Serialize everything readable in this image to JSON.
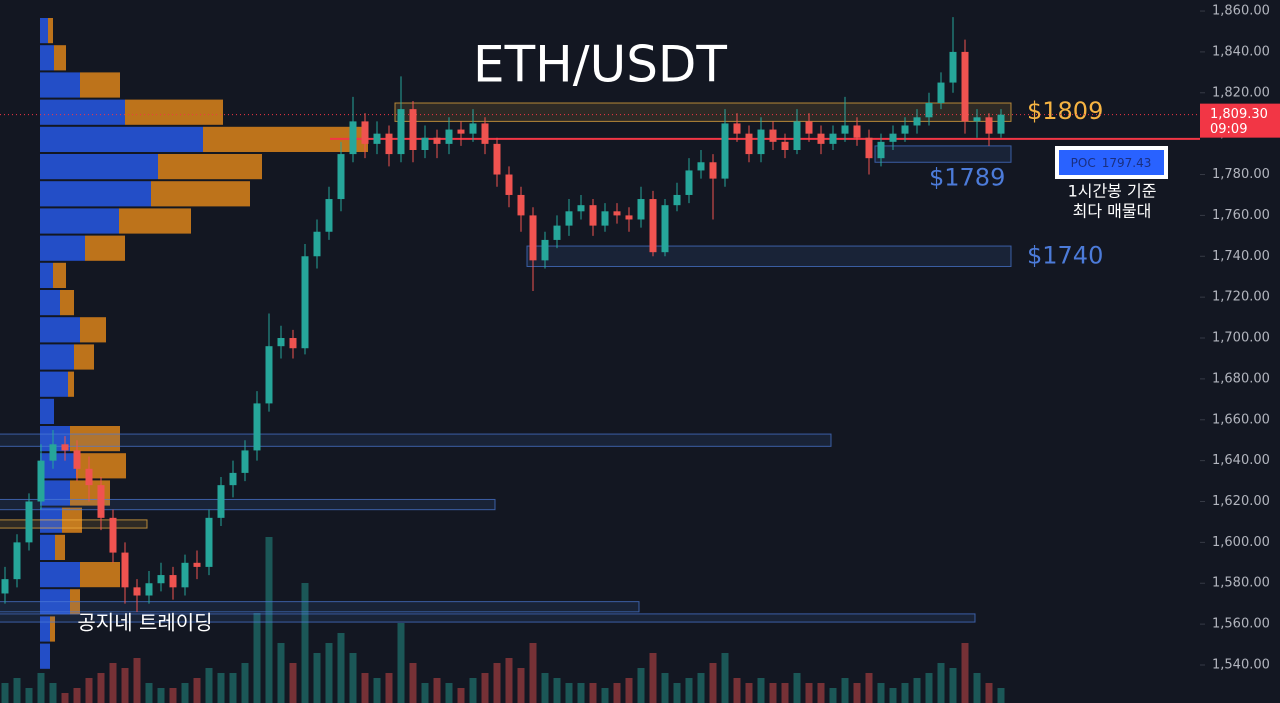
{
  "chart_data": {
    "type": "candlestick",
    "title": "ETH/USDT",
    "ylim": [
      1521.4,
      1865.4
    ],
    "yticks": [
      {
        "value": 1540,
        "label": "1,540.00"
      },
      {
        "value": 1560,
        "label": "1,560.00"
      },
      {
        "value": 1580,
        "label": "1,580.00"
      },
      {
        "value": 1600,
        "label": "1,600.00"
      },
      {
        "value": 1620,
        "label": "1,620.00"
      },
      {
        "value": 1640,
        "label": "1,640.00"
      },
      {
        "value": 1660,
        "label": "1,660.00"
      },
      {
        "value": 1680,
        "label": "1,680.00"
      },
      {
        "value": 1700,
        "label": "1,700.00"
      },
      {
        "value": 1720,
        "label": "1,720.00"
      },
      {
        "value": 1740,
        "label": "1,740.00"
      },
      {
        "value": 1760,
        "label": "1,760.00"
      },
      {
        "value": 1780,
        "label": "1,780.00"
      },
      {
        "value": 1800,
        "label": "1,800.00"
      },
      {
        "value": 1820,
        "label": "1,820.00"
      },
      {
        "value": 1840,
        "label": "1,840.00"
      },
      {
        "value": 1860,
        "label": "1,860.00"
      }
    ],
    "up_color": "#26a69a",
    "down_color": "#ef5350",
    "ohlc": [
      [
        1575,
        1588,
        1570,
        1582
      ],
      [
        1582,
        1604,
        1578,
        1600
      ],
      [
        1600,
        1624,
        1596,
        1620
      ],
      [
        1620,
        1648,
        1616,
        1640
      ],
      [
        1640,
        1655,
        1636,
        1648
      ],
      [
        1648,
        1652,
        1640,
        1645
      ],
      [
        1645,
        1650,
        1630,
        1636
      ],
      [
        1636,
        1642,
        1620,
        1628
      ],
      [
        1628,
        1632,
        1606,
        1612
      ],
      [
        1612,
        1616,
        1590,
        1595
      ],
      [
        1595,
        1600,
        1570,
        1578
      ],
      [
        1578,
        1582,
        1566,
        1574
      ],
      [
        1574,
        1586,
        1570,
        1580
      ],
      [
        1580,
        1590,
        1576,
        1584
      ],
      [
        1584,
        1588,
        1572,
        1578
      ],
      [
        1578,
        1594,
        1574,
        1590
      ],
      [
        1590,
        1596,
        1582,
        1588
      ],
      [
        1588,
        1616,
        1584,
        1612
      ],
      [
        1612,
        1632,
        1608,
        1628
      ],
      [
        1628,
        1640,
        1622,
        1634
      ],
      [
        1634,
        1650,
        1630,
        1645
      ],
      [
        1645,
        1674,
        1640,
        1668
      ],
      [
        1668,
        1712,
        1664,
        1696
      ],
      [
        1696,
        1706,
        1690,
        1700
      ],
      [
        1700,
        1704,
        1690,
        1695
      ],
      [
        1695,
        1746,
        1692,
        1740
      ],
      [
        1740,
        1758,
        1734,
        1752
      ],
      [
        1752,
        1774,
        1748,
        1768
      ],
      [
        1768,
        1796,
        1762,
        1790
      ],
      [
        1790,
        1818,
        1786,
        1806
      ],
      [
        1806,
        1810,
        1788,
        1795
      ],
      [
        1795,
        1806,
        1790,
        1800
      ],
      [
        1800,
        1804,
        1784,
        1790
      ],
      [
        1790,
        1828,
        1786,
        1812
      ],
      [
        1812,
        1816,
        1786,
        1792
      ],
      [
        1792,
        1804,
        1788,
        1798
      ],
      [
        1798,
        1802,
        1788,
        1795
      ],
      [
        1795,
        1808,
        1790,
        1802
      ],
      [
        1802,
        1806,
        1794,
        1800
      ],
      [
        1800,
        1812,
        1796,
        1805
      ],
      [
        1805,
        1808,
        1790,
        1795
      ],
      [
        1795,
        1798,
        1774,
        1780
      ],
      [
        1780,
        1784,
        1764,
        1770
      ],
      [
        1770,
        1774,
        1752,
        1760
      ],
      [
        1760,
        1764,
        1723,
        1738
      ],
      [
        1738,
        1752,
        1734,
        1748
      ],
      [
        1748,
        1760,
        1744,
        1755
      ],
      [
        1755,
        1768,
        1750,
        1762
      ],
      [
        1762,
        1770,
        1758,
        1765
      ],
      [
        1765,
        1768,
        1750,
        1755
      ],
      [
        1755,
        1766,
        1752,
        1762
      ],
      [
        1762,
        1766,
        1756,
        1760
      ],
      [
        1760,
        1764,
        1752,
        1758
      ],
      [
        1758,
        1774,
        1754,
        1768
      ],
      [
        1768,
        1772,
        1740,
        1742
      ],
      [
        1742,
        1768,
        1740,
        1765
      ],
      [
        1765,
        1776,
        1762,
        1770
      ],
      [
        1770,
        1788,
        1766,
        1782
      ],
      [
        1782,
        1792,
        1778,
        1786
      ],
      [
        1786,
        1790,
        1758,
        1778
      ],
      [
        1778,
        1812,
        1774,
        1805
      ],
      [
        1805,
        1810,
        1796,
        1800
      ],
      [
        1800,
        1804,
        1786,
        1790
      ],
      [
        1790,
        1808,
        1786,
        1802
      ],
      [
        1802,
        1806,
        1792,
        1796
      ],
      [
        1796,
        1800,
        1788,
        1792
      ],
      [
        1792,
        1812,
        1790,
        1806
      ],
      [
        1806,
        1810,
        1796,
        1800
      ],
      [
        1800,
        1804,
        1790,
        1795
      ],
      [
        1795,
        1804,
        1792,
        1800
      ],
      [
        1800,
        1818,
        1796,
        1804
      ],
      [
        1804,
        1808,
        1794,
        1798
      ],
      [
        1798,
        1802,
        1780,
        1788
      ],
      [
        1788,
        1800,
        1784,
        1796
      ],
      [
        1796,
        1804,
        1792,
        1800
      ],
      [
        1800,
        1808,
        1796,
        1804
      ],
      [
        1804,
        1812,
        1800,
        1808
      ],
      [
        1808,
        1820,
        1804,
        1815
      ],
      [
        1815,
        1830,
        1812,
        1825
      ],
      [
        1825,
        1857,
        1820,
        1840
      ],
      [
        1840,
        1846,
        1800,
        1806
      ],
      [
        1806,
        1812,
        1798,
        1808
      ],
      [
        1808,
        1810,
        1794,
        1800
      ],
      [
        1800,
        1812,
        1798,
        1809.3
      ]
    ],
    "volume": [
      20,
      25,
      15,
      30,
      20,
      10,
      15,
      25,
      30,
      40,
      35,
      45,
      20,
      15,
      15,
      20,
      25,
      35,
      30,
      30,
      40,
      90,
      166,
      60,
      40,
      120,
      50,
      60,
      70,
      50,
      30,
      25,
      30,
      80,
      40,
      20,
      25,
      20,
      15,
      25,
      30,
      40,
      45,
      35,
      60,
      30,
      25,
      20,
      20,
      20,
      15,
      20,
      25,
      35,
      50,
      30,
      20,
      25,
      30,
      40,
      50,
      25,
      20,
      25,
      20,
      20,
      30,
      20,
      20,
      15,
      25,
      20,
      30,
      20,
      15,
      20,
      25,
      30,
      40,
      35,
      60,
      30,
      20,
      15
    ],
    "volume_profile": {
      "buy_color": "#2962ff",
      "sell_color": "#f7931a",
      "buy": [
        8,
        14,
        40,
        85,
        163,
        118,
        111,
        79,
        45,
        13,
        20,
        40,
        34,
        28,
        14,
        30,
        36,
        30,
        22,
        15,
        40,
        30,
        10,
        10
      ],
      "sell": [
        5,
        12,
        40,
        98,
        165,
        104,
        99,
        72,
        40,
        13,
        14,
        26,
        20,
        6,
        0,
        50,
        50,
        40,
        20,
        10,
        40,
        10,
        5,
        0
      ]
    },
    "zones": [
      {
        "label": "$1809",
        "low": 1806,
        "high": 1815,
        "color": "#f5b342",
        "range": [
          33,
          83
        ]
      },
      {
        "label": "$1789",
        "low": 1786,
        "high": 1794,
        "color": "#4c7bd9",
        "range": [
          73,
          83
        ]
      },
      {
        "label": "$1740",
        "low": 1735,
        "high": 1745,
        "color": "#4c7bd9",
        "range": [
          44,
          83
        ]
      },
      {
        "low": 1647,
        "high": 1653,
        "color": "#4c7bd9",
        "range": [
          0,
          68
        ]
      },
      {
        "low": 1616,
        "high": 1621,
        "color": "#4c7bd9",
        "range": [
          0,
          40
        ]
      },
      {
        "low": 1607,
        "high": 1611,
        "color": "#f5b342",
        "range": [
          0,
          11
        ]
      },
      {
        "low": 1566,
        "high": 1571,
        "color": "#4c7bd9",
        "range": [
          0,
          52
        ]
      },
      {
        "low": 1561,
        "high": 1565,
        "color": "#4c7bd9",
        "range": [
          0,
          80
        ]
      }
    ],
    "poc_label": "POC",
    "poc": 1797.43,
    "poc_note": [
      "1시간봉 기준",
      "최다 매물대"
    ],
    "last_price": {
      "value": 1809.3,
      "label": "1,809.30"
    },
    "countdown": "09:09",
    "watermark": "공지네 트레이딩"
  }
}
